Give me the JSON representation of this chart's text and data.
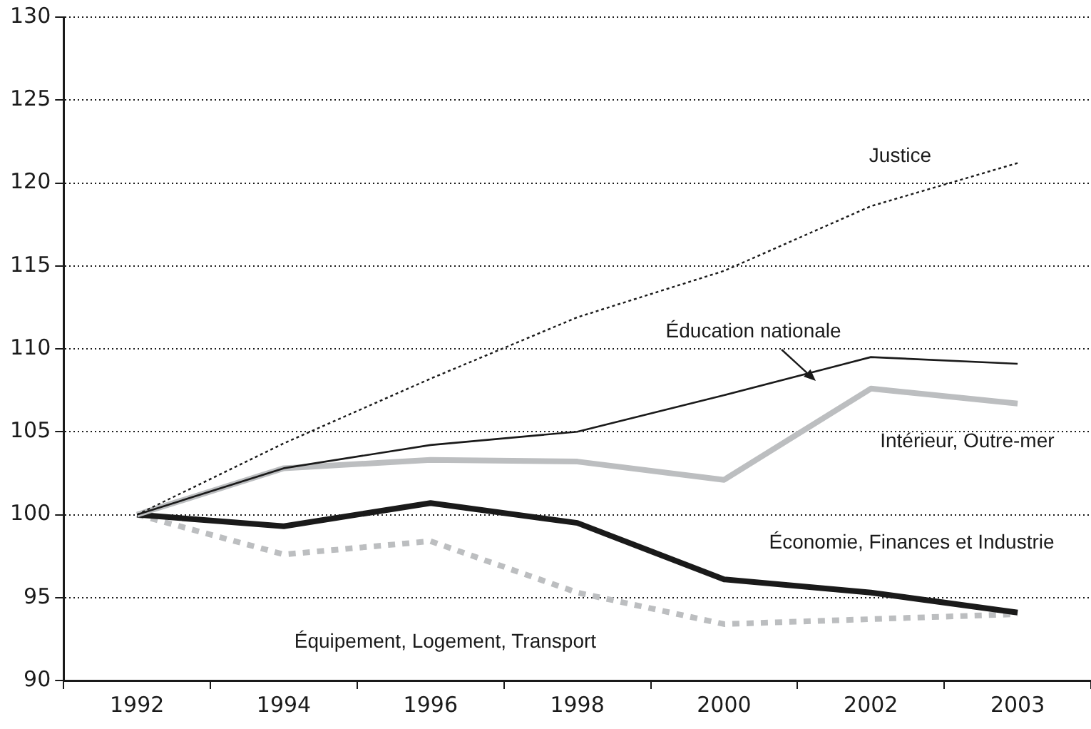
{
  "chart_data": {
    "type": "line",
    "categories": [
      "1992",
      "1994",
      "1996",
      "1998",
      "2000",
      "2002",
      "2003"
    ],
    "ylim": [
      90,
      130
    ],
    "yticks": [
      90,
      95,
      100,
      105,
      110,
      115,
      120,
      125,
      130
    ],
    "grid": "y",
    "legend": false,
    "series": [
      {
        "name": "Justice",
        "color": "#1a1a1a",
        "line_style": "dotted",
        "values": [
          100,
          104.3,
          108.2,
          111.9,
          114.7,
          118.6,
          121.2
        ]
      },
      {
        "name": "Éducation nationale",
        "color": "#1a1a1a",
        "line_style": "solid",
        "values": [
          100,
          102.8,
          104.2,
          105.0,
          107.2,
          109.5,
          109.1
        ]
      },
      {
        "name": "Intérieur, Outre-mer",
        "color": "#bcbec0",
        "line_style": "solid",
        "values": [
          100,
          102.8,
          103.3,
          103.2,
          102.1,
          107.6,
          106.7
        ]
      },
      {
        "name": "Économie, Finances et Industrie",
        "color": "#1a1a1a",
        "line_style": "solid",
        "values": [
          100,
          99.3,
          100.7,
          99.5,
          96.1,
          95.3,
          94.1
        ]
      },
      {
        "name": "Équipement, Logement, Transport",
        "color": "#bcbec0",
        "line_style": "dotted",
        "values": [
          100,
          97.6,
          98.4,
          95.3,
          93.4,
          93.7,
          94.0
        ]
      }
    ]
  }
}
